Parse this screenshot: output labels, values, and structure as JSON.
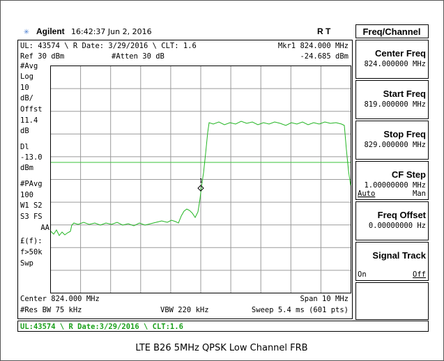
{
  "header": {
    "brand": "Agilent",
    "time": "16:42:37  Jun 2, 2016",
    "flags": "R   T"
  },
  "info": {
    "line1": "UL: 43574 \\ R Date: 3/29/2016 \\ CLT: 1.6",
    "ref": "Ref 30 dBm",
    "atten": "#Atten 30 dB",
    "marker": "Mkr1  824.000 MHz",
    "marker_level": "-24.685 dBm"
  },
  "left_labels": [
    "#Avg",
    "Log",
    "10",
    "dB/",
    "Offst",
    "11.4",
    "dB",
    "Dl",
    "-13.0",
    "dBm",
    "#PAvg",
    "100",
    "W1  S2",
    "S3  FS",
    "AA",
    "£(f):",
    "f>50k",
    "Swp"
  ],
  "marker_label": "1",
  "footer": {
    "center": "Center 824.000 MHz",
    "span": "Span 10 MHz",
    "rbw": "#Res BW 75 kHz",
    "vbw": "VBW 220 kHz",
    "sweep": "Sweep 5.4 ms (601 pts)"
  },
  "status": "UL:43574 \\ R Date:3/29/2016 \\ CLT:1.6",
  "menu": {
    "title": "Freq/Channel",
    "keys": [
      {
        "label": "Center Freq",
        "value": "824.000000 MHz"
      },
      {
        "label": "Start Freq",
        "value": "819.000000 MHz"
      },
      {
        "label": "Stop Freq",
        "value": "829.000000 MHz"
      },
      {
        "label": "CF Step",
        "value": "1.00000000 MHz",
        "left": "Auto",
        "right": "Man"
      },
      {
        "label": "Freq Offset",
        "value": "0.00000000 Hz"
      },
      {
        "label": "Signal Track",
        "left": "On",
        "right": "Off"
      }
    ]
  },
  "caption": "LTE B26 5MHz QPSK Low Channel FRB"
}
